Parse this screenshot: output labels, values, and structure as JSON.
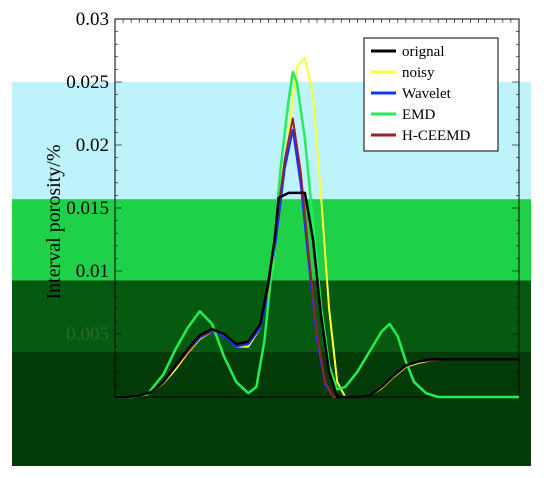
{
  "chart_data": {
    "type": "line",
    "title": "",
    "xlabel": "",
    "ylabel": "Interval porosity/%",
    "ylim": [
      0,
      0.03
    ],
    "xlim": [
      0,
      100
    ],
    "yticks": [
      {
        "value": 0.03,
        "label": "0.03"
      },
      {
        "value": 0.025,
        "label": "0.025"
      },
      {
        "value": 0.02,
        "label": "0.02"
      },
      {
        "value": 0.015,
        "label": "0.015"
      },
      {
        "value": 0.01,
        "label": "0.01"
      },
      {
        "value": 0.005,
        "label": "0.005"
      }
    ],
    "legend_position": "top-right",
    "overlay_bands": [
      {
        "from": 0.025,
        "to": 0.0157,
        "color": "#bff3fb"
      },
      {
        "from": 0.0157,
        "to": 0.00925,
        "color": "#1ed148"
      },
      {
        "from": 0.00925,
        "to": 0.00364,
        "color": "#055a10"
      },
      {
        "from": 0.00364,
        "to": 0.0,
        "color": "#023a08"
      }
    ],
    "series": [
      {
        "name": "noisy",
        "color": "#ffff33",
        "width": 2,
        "points": [
          [
            0,
            0
          ],
          [
            3,
            0
          ],
          [
            6,
            0.0001
          ],
          [
            9,
            0.0004
          ],
          [
            12,
            0.0011
          ],
          [
            15,
            0.0022
          ],
          [
            18,
            0.0035
          ],
          [
            21,
            0.0046
          ],
          [
            24,
            0.0052
          ],
          [
            27,
            0.0049
          ],
          [
            30,
            0.004
          ],
          [
            33,
            0.004
          ],
          [
            36,
            0.0055
          ],
          [
            39,
            0.0102
          ],
          [
            42,
            0.0185
          ],
          [
            45,
            0.0262
          ],
          [
            47,
            0.0269
          ],
          [
            49,
            0.024
          ],
          [
            51,
            0.016
          ],
          [
            53,
            0.007
          ],
          [
            55,
            0.0012
          ],
          [
            57,
            0
          ],
          [
            60,
            0
          ],
          [
            63,
            0.0001
          ],
          [
            66,
            0.0007
          ],
          [
            69,
            0.0016
          ],
          [
            72,
            0.0024
          ],
          [
            75,
            0.0027
          ],
          [
            78,
            0.0029
          ],
          [
            81,
            0.003
          ],
          [
            84,
            0.003
          ],
          [
            88,
            0.003
          ],
          [
            92,
            0.003
          ],
          [
            96,
            0.003
          ],
          [
            100,
            0.003
          ]
        ]
      },
      {
        "name": "Wavelet",
        "color": "#1133ff",
        "width": 2,
        "points": [
          [
            0,
            0
          ],
          [
            3,
            0
          ],
          [
            6,
            0.0001
          ],
          [
            9,
            0.0004
          ],
          [
            12,
            0.0012
          ],
          [
            15,
            0.0024
          ],
          [
            18,
            0.0036
          ],
          [
            21,
            0.0047
          ],
          [
            24,
            0.0052
          ],
          [
            27,
            0.0048
          ],
          [
            30,
            0.004
          ],
          [
            33,
            0.0042
          ],
          [
            36,
            0.0055
          ],
          [
            38,
            0.0082
          ],
          [
            40,
            0.0128
          ],
          [
            42,
            0.0181
          ],
          [
            44,
            0.0212
          ],
          [
            46,
            0.0168
          ],
          [
            48,
            0.0105
          ],
          [
            50,
            0.0045
          ],
          [
            52,
            0.001
          ],
          [
            54,
            0
          ],
          [
            60,
            0
          ],
          [
            63,
            0.0001
          ],
          [
            66,
            0.0008
          ],
          [
            69,
            0.0017
          ],
          [
            72,
            0.0025
          ],
          [
            75,
            0.0028
          ],
          [
            78,
            0.003
          ],
          [
            81,
            0.003
          ],
          [
            85,
            0.003
          ],
          [
            90,
            0.003
          ],
          [
            95,
            0.003
          ],
          [
            100,
            0.003
          ]
        ]
      },
      {
        "name": "EMD",
        "color": "#22ee55",
        "width": 2.5,
        "points": [
          [
            0,
            0
          ],
          [
            4,
            0
          ],
          [
            8,
            0.0002
          ],
          [
            12,
            0.0018
          ],
          [
            15,
            0.0038
          ],
          [
            18,
            0.0055
          ],
          [
            21,
            0.0068
          ],
          [
            24,
            0.0058
          ],
          [
            27,
            0.0032
          ],
          [
            30,
            0.0012
          ],
          [
            33,
            0.0003
          ],
          [
            35,
            0.0008
          ],
          [
            37,
            0.0045
          ],
          [
            39,
            0.0108
          ],
          [
            41,
            0.0182
          ],
          [
            43,
            0.0236
          ],
          [
            44,
            0.0258
          ],
          [
            45,
            0.025
          ],
          [
            47,
            0.0205
          ],
          [
            49,
            0.0138
          ],
          [
            51,
            0.0072
          ],
          [
            53,
            0.0025
          ],
          [
            55,
            0.0006
          ],
          [
            57,
            0.0008
          ],
          [
            60,
            0.002
          ],
          [
            63,
            0.0036
          ],
          [
            66,
            0.0052
          ],
          [
            68,
            0.0058
          ],
          [
            70,
            0.0048
          ],
          [
            72,
            0.0028
          ],
          [
            74,
            0.0012
          ],
          [
            77,
            0.0003
          ],
          [
            80,
            0
          ],
          [
            85,
            0
          ],
          [
            90,
            0
          ],
          [
            95,
            0
          ],
          [
            100,
            0
          ]
        ]
      },
      {
        "name": "H-CEEMD",
        "color": "#9a1f28",
        "width": 2,
        "points": [
          [
            0,
            0
          ],
          [
            3,
            0
          ],
          [
            6,
            0.0001
          ],
          [
            9,
            0.0004
          ],
          [
            12,
            0.0012
          ],
          [
            15,
            0.0024
          ],
          [
            18,
            0.0036
          ],
          [
            21,
            0.0048
          ],
          [
            24,
            0.0053
          ],
          [
            27,
            0.005
          ],
          [
            30,
            0.0042
          ],
          [
            33,
            0.0044
          ],
          [
            36,
            0.0058
          ],
          [
            38,
            0.0088
          ],
          [
            40,
            0.0138
          ],
          [
            42,
            0.0188
          ],
          [
            44,
            0.0221
          ],
          [
            46,
            0.0178
          ],
          [
            48,
            0.0112
          ],
          [
            50,
            0.005
          ],
          [
            52,
            0.0012
          ],
          [
            54,
            0
          ],
          [
            60,
            0
          ],
          [
            63,
            0.0001
          ],
          [
            66,
            0.0008
          ],
          [
            69,
            0.0017
          ],
          [
            72,
            0.0025
          ],
          [
            75,
            0.0028
          ],
          [
            78,
            0.0029
          ],
          [
            81,
            0.003
          ],
          [
            85,
            0.003
          ],
          [
            90,
            0.003
          ],
          [
            95,
            0.003
          ],
          [
            100,
            0.003
          ]
        ]
      },
      {
        "name": "orignal",
        "color": "#000000",
        "width": 2.5,
        "points": [
          [
            0,
            0
          ],
          [
            3,
            0
          ],
          [
            6,
            0.0001
          ],
          [
            9,
            0.0004
          ],
          [
            12,
            0.0012
          ],
          [
            15,
            0.0025
          ],
          [
            18,
            0.0038
          ],
          [
            21,
            0.0049
          ],
          [
            24,
            0.0054
          ],
          [
            27,
            0.005
          ],
          [
            30,
            0.0042
          ],
          [
            33,
            0.0044
          ],
          [
            36,
            0.0058
          ],
          [
            38,
            0.0092
          ],
          [
            39.5,
            0.0125
          ],
          [
            40.5,
            0.0158
          ],
          [
            43,
            0.0162
          ],
          [
            45,
            0.0162
          ],
          [
            47,
            0.0162
          ],
          [
            49,
            0.0125
          ],
          [
            51,
            0.0065
          ],
          [
            53,
            0.002
          ],
          [
            55,
            0
          ],
          [
            60,
            0
          ],
          [
            63,
            0.0001
          ],
          [
            66,
            0.0008
          ],
          [
            69,
            0.0017
          ],
          [
            72,
            0.0025
          ],
          [
            75,
            0.0028
          ],
          [
            78,
            0.003
          ],
          [
            82,
            0.003
          ],
          [
            86,
            0.003
          ],
          [
            90,
            0.003
          ],
          [
            95,
            0.003
          ],
          [
            100,
            0.003
          ]
        ]
      }
    ]
  }
}
